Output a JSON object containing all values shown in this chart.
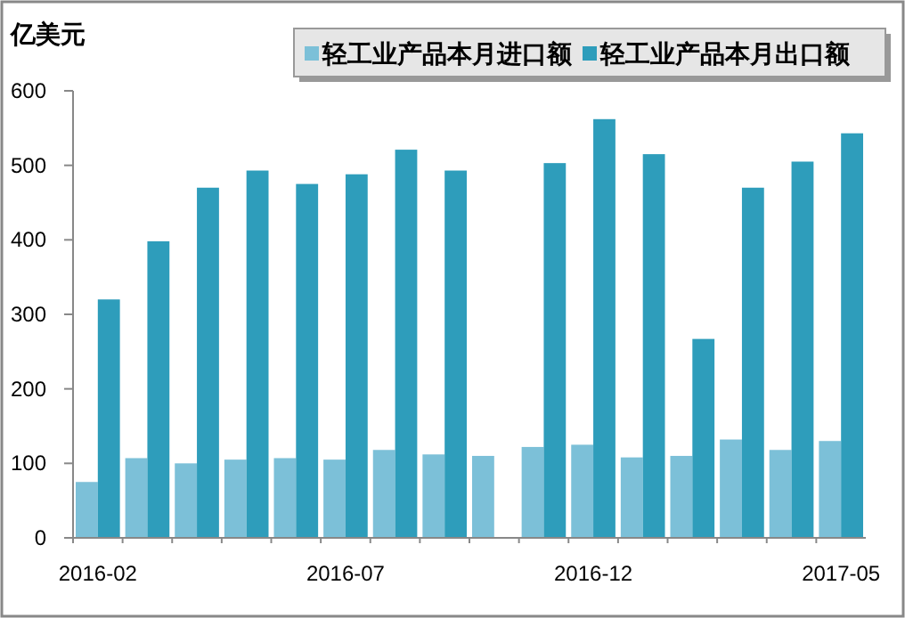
{
  "chart_data": {
    "type": "bar",
    "ylabel": "亿美元",
    "categories": [
      "2016-02",
      null,
      null,
      null,
      null,
      "2016-07",
      null,
      null,
      null,
      null,
      "2016-12",
      null,
      null,
      null,
      null,
      "2017-05"
    ],
    "series": [
      {
        "name": "轻工业产品本月进口额",
        "color": "#7cc0d8",
        "values": [
          75,
          107,
          100,
          105,
          107,
          105,
          118,
          112,
          110,
          122,
          125,
          108,
          110,
          132,
          118,
          130
        ]
      },
      {
        "name": "轻工业产品本月出口额",
        "color": "#2e9dbb",
        "values": [
          320,
          398,
          470,
          493,
          475,
          488,
          521,
          493,
          null,
          503,
          562,
          515,
          267,
          470,
          505,
          543
        ]
      }
    ],
    "ylim": [
      0,
      600
    ],
    "yticks": [
      0,
      100,
      200,
      300,
      400,
      500,
      600
    ],
    "grid": false,
    "legend": "top right"
  }
}
